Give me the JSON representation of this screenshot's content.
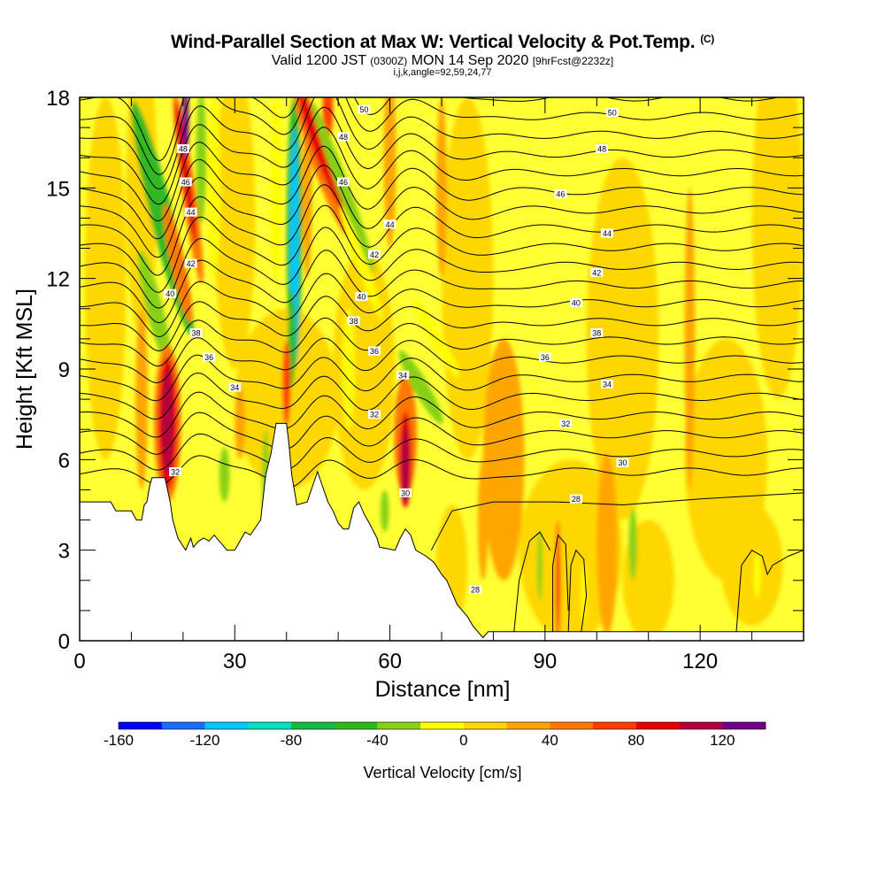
{
  "title": {
    "main": "Wind-Parallel Section at Max W: Vertical Velocity & Pot.Temp.",
    "copyright": "(C)",
    "valid_prefix": "Valid 1200 JST",
    "valid_utc": "(0300Z)",
    "valid_date": "MON 14 Sep 2020",
    "fcst": "[9hrFcst@2232z]",
    "indices": "i,j,k,angle=92,59,24,77"
  },
  "colorbar": {
    "label": "Vertical Velocity [cm/s]",
    "ticks": [
      "-160",
      "-120",
      "-80",
      "-40",
      "0",
      "40",
      "80",
      "120"
    ],
    "colors": [
      "#0000ff",
      "#1e6cff",
      "#00c8ff",
      "#00e0c0",
      "#18b848",
      "#30b820",
      "#88d018",
      "#ffff00",
      "#ffd700",
      "#ffa500",
      "#ff7800",
      "#ff3c00",
      "#e80000",
      "#b4003c",
      "#700088"
    ],
    "min": -160,
    "max": 140,
    "step": 20
  },
  "chart_data": {
    "type": "heatmap",
    "xlabel": "Distance [nm]",
    "ylabel": "Height [Kft MSL]",
    "xlim": [
      0,
      140
    ],
    "ylim": [
      0,
      18
    ],
    "xticks": [
      "0",
      "30",
      "60",
      "90",
      "120"
    ],
    "yticks": [
      "0",
      "3",
      "6",
      "9",
      "12",
      "15",
      "18"
    ],
    "field": "Vertical Velocity [cm/s]",
    "contour_field": "Potential Temperature",
    "contour_labels": [
      {
        "text": "50",
        "x": 55,
        "y": 17.6
      },
      {
        "text": "50",
        "x": 103,
        "y": 17.5
      },
      {
        "text": "48",
        "x": 51,
        "y": 16.7
      },
      {
        "text": "48",
        "x": 101,
        "y": 16.3
      },
      {
        "text": "48",
        "x": 20,
        "y": 16.3
      },
      {
        "text": "46",
        "x": 20.5,
        "y": 15.2
      },
      {
        "text": "46",
        "x": 51,
        "y": 15.2
      },
      {
        "text": "46",
        "x": 93,
        "y": 14.8
      },
      {
        "text": "44",
        "x": 21.5,
        "y": 14.2
      },
      {
        "text": "44",
        "x": 60,
        "y": 13.8
      },
      {
        "text": "44",
        "x": 102,
        "y": 13.5
      },
      {
        "text": "42",
        "x": 21.5,
        "y": 12.5
      },
      {
        "text": "42",
        "x": 57,
        "y": 12.8
      },
      {
        "text": "42",
        "x": 100,
        "y": 12.2
      },
      {
        "text": "40",
        "x": 17.5,
        "y": 11.5
      },
      {
        "text": "40",
        "x": 54.5,
        "y": 11.4
      },
      {
        "text": "40",
        "x": 96,
        "y": 11.2
      },
      {
        "text": "38",
        "x": 22.5,
        "y": 10.2
      },
      {
        "text": "38",
        "x": 53,
        "y": 10.6
      },
      {
        "text": "38",
        "x": 100,
        "y": 10.2
      },
      {
        "text": "36",
        "x": 25,
        "y": 9.4
      },
      {
        "text": "36",
        "x": 57,
        "y": 9.6
      },
      {
        "text": "36",
        "x": 90,
        "y": 9.4
      },
      {
        "text": "34",
        "x": 30,
        "y": 8.4
      },
      {
        "text": "34",
        "x": 62.5,
        "y": 8.8
      },
      {
        "text": "34",
        "x": 102,
        "y": 8.5
      },
      {
        "text": "32",
        "x": 57,
        "y": 7.5
      },
      {
        "text": "32",
        "x": 94,
        "y": 7.2
      },
      {
        "text": "32",
        "x": 18.5,
        "y": 5.6
      },
      {
        "text": "30",
        "x": 63,
        "y": 4.9
      },
      {
        "text": "30",
        "x": 105,
        "y": 5.9
      },
      {
        "text": "28",
        "x": 96,
        "y": 4.7
      },
      {
        "text": "28",
        "x": 76.5,
        "y": 1.7
      }
    ],
    "features": [
      {
        "kind": "updraft",
        "x": 17,
        "y_range": [
          5,
          9.5
        ],
        "max_w": 120
      },
      {
        "kind": "updraft",
        "x": 20.5,
        "y_range": [
          12,
          18
        ],
        "max_w": 110
      },
      {
        "kind": "updraft",
        "x": 47,
        "y_range": [
          13,
          18
        ],
        "max_w": 90
      },
      {
        "kind": "updraft",
        "x": 63,
        "y_range": [
          4.5,
          7.5
        ],
        "max_w": 120
      },
      {
        "kind": "downdraft",
        "x": 41.5,
        "y_range": [
          9,
          18
        ],
        "max_w": -110
      },
      {
        "kind": "downdraft",
        "x": 17,
        "y_range": [
          10,
          18
        ],
        "max_w": -60
      }
    ]
  }
}
